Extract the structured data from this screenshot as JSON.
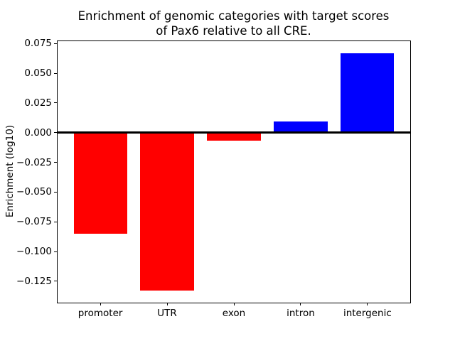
{
  "chart_data": {
    "type": "bar",
    "title_lines": [
      "Enrichment of genomic categories with target scores",
      "of Pax6 relative to all CRE."
    ],
    "ylabel": "Enrichment (log10)",
    "xlabel": "",
    "categories": [
      "promoter",
      "UTR",
      "exon",
      "intron",
      "intergenic"
    ],
    "values": [
      -0.0853,
      -0.1331,
      -0.0069,
      0.0095,
      0.0667
    ],
    "bar_colors": [
      "#ff0000",
      "#ff0000",
      "#ff0000",
      "#0000ff",
      "#0000ff"
    ],
    "bar_width": 0.8,
    "yticks": [
      0.075,
      0.05,
      0.025,
      0.0,
      -0.025,
      -0.05,
      -0.075,
      -0.1,
      -0.125
    ],
    "ytick_labels": [
      "0.075",
      "0.050",
      "0.025",
      "0.000",
      "−0.025",
      "−0.050",
      "−0.075",
      "−0.100",
      "−0.125"
    ],
    "ylim": [
      -0.143,
      0.077
    ],
    "xlim": [
      -0.64,
      4.64
    ],
    "zero_line": true,
    "grid": false,
    "legend": false,
    "axis_color": "#000000",
    "background_color": "#ffffff"
  }
}
